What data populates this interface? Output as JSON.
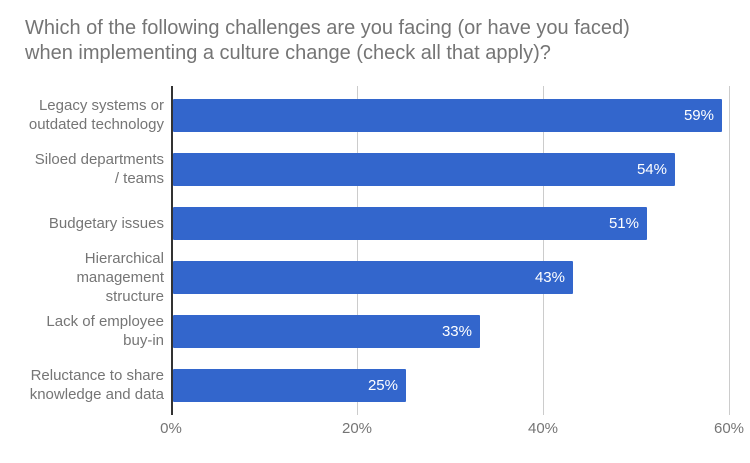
{
  "display": {
    "title_lines": "Which of the following challenges are you facing (or have you faced)\nwhen implementing a culture change (check all that apply)?",
    "category_lines": [
      "Legacy systems or\noutdated technology",
      "Siloed departments\n/ teams",
      "Budgetary issues",
      "Hierarchical\nmanagement\nstructure",
      "Lack of employee\nbuy-in",
      "Reluctance to share\nknowledge and data"
    ]
  },
  "colors": {
    "bar": "#3366cc",
    "title_text": "#757575",
    "category_text": "#757575",
    "tick_text": "#757575",
    "value_text": "#ffffff",
    "axis_line": "#333333",
    "gridline": "#cccccc",
    "background": "#ffffff"
  },
  "chart_data": {
    "type": "bar",
    "orientation": "horizontal",
    "title": "Which of the following challenges are you facing (or have you faced) when implementing a culture change (check all that apply)?",
    "categories": [
      "Legacy systems or outdated technology",
      "Siloed departments / teams",
      "Budgetary issues",
      "Hierarchical management structure",
      "Lack of employee buy-in",
      "Reluctance to share knowledge and data"
    ],
    "values": [
      59,
      54,
      51,
      43,
      33,
      25
    ],
    "value_labels": [
      "59%",
      "54%",
      "51%",
      "43%",
      "33%",
      "25%"
    ],
    "x_tick_labels": [
      "0%",
      "20%",
      "40%",
      "60%"
    ],
    "x_tick_values": [
      0,
      20,
      40,
      60
    ],
    "xlim": [
      0,
      60
    ],
    "xlabel": "",
    "ylabel": "",
    "grid": true,
    "legend": "none",
    "bar_color": "#3366cc",
    "value_label_position": "inside-end"
  }
}
